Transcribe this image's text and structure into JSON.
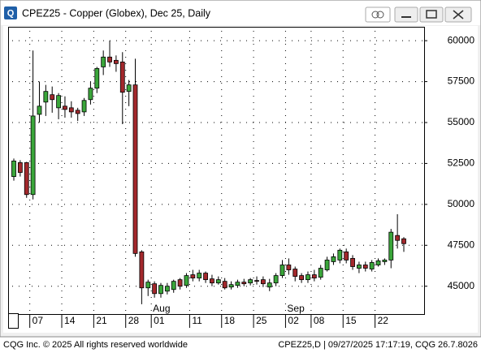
{
  "window_title": "CPEZ25 - Copper (Globex), Dec 25, Daily",
  "footer": {
    "left": "CQG Inc. © 2025 All rights reserved worldwide",
    "right": "CPEZ25,D | 09/27/2025 17:17:19, CQG 26.7.8026"
  },
  "chart_data": {
    "type": "candlestick",
    "categories": [
      null,
      null,
      null,
      "07",
      null,
      null,
      null,
      null,
      "14",
      null,
      null,
      null,
      null,
      "21",
      null,
      null,
      null,
      null,
      "28",
      null,
      null,
      null,
      "01",
      null,
      null,
      null,
      null,
      null,
      "11",
      null,
      null,
      null,
      null,
      "18",
      null,
      null,
      null,
      null,
      "25",
      null,
      null,
      null,
      null,
      "02",
      null,
      null,
      null,
      "08",
      null,
      null,
      null,
      null,
      "15",
      null,
      null,
      null,
      null,
      "22",
      null,
      null,
      null,
      null
    ],
    "months": [
      null,
      null,
      null,
      null,
      null,
      null,
      null,
      null,
      null,
      null,
      null,
      null,
      null,
      null,
      null,
      null,
      null,
      null,
      null,
      null,
      null,
      null,
      "Aug",
      null,
      null,
      null,
      null,
      null,
      null,
      null,
      null,
      null,
      null,
      null,
      null,
      null,
      null,
      null,
      null,
      null,
      null,
      null,
      null,
      "Sep",
      null,
      null,
      null,
      null,
      null,
      null,
      null,
      null,
      null,
      null,
      null,
      null,
      null,
      null,
      null,
      null,
      null,
      null
    ],
    "open": [
      51700,
      52550,
      52550,
      50600,
      55500,
      56250,
      56700,
      55900,
      56000,
      55900,
      55750,
      55650,
      56400,
      57100,
      58400,
      59000,
      58800,
      58700,
      56900,
      57300,
      47100,
      44900,
      45150,
      44550,
      44700,
      44800,
      45400,
      45050,
      45700,
      45500,
      45800,
      45450,
      45200,
      45300,
      44950,
      45050,
      45250,
      45200,
      45350,
      45400,
      44950,
      45200,
      45650,
      46300,
      46050,
      45650,
      45400,
      45700,
      45550,
      46000,
      46500,
      46600,
      47100,
      46700,
      46100,
      46300,
      46050,
      46300,
      46500,
      46600,
      48100,
      47900
    ],
    "high": [
      52800,
      52700,
      52600,
      59400,
      57500,
      57300,
      57200,
      56800,
      56600,
      56300,
      55900,
      56500,
      57500,
      58400,
      59400,
      60000,
      59100,
      59300,
      57600,
      58900,
      47200,
      45400,
      45300,
      45200,
      45200,
      45400,
      45500,
      45800,
      46000,
      46000,
      45900,
      45700,
      45600,
      45500,
      45300,
      45400,
      45450,
      45500,
      45600,
      45600,
      45450,
      45800,
      46600,
      46700,
      46200,
      45800,
      45900,
      46000,
      46300,
      46800,
      47000,
      47300,
      47300,
      46900,
      46500,
      46500,
      46600,
      46700,
      46700,
      48500,
      49400,
      48000
    ],
    "low": [
      51450,
      51700,
      50400,
      50300,
      55000,
      55400,
      55600,
      55200,
      55300,
      55300,
      55100,
      55400,
      56100,
      56800,
      57900,
      58400,
      58100,
      54900,
      56000,
      46800,
      43900,
      44400,
      44300,
      44300,
      44500,
      44600,
      44800,
      44900,
      45300,
      45300,
      45200,
      45000,
      45100,
      44800,
      44800,
      44900,
      45000,
      45050,
      45100,
      44950,
      44700,
      45000,
      45500,
      45700,
      45300,
      45200,
      45200,
      45300,
      45400,
      45900,
      46300,
      46400,
      46400,
      46000,
      45800,
      45900,
      45900,
      46200,
      46300,
      46100,
      47300,
      47100
    ],
    "close": [
      52650,
      51950,
      50600,
      55400,
      56000,
      56900,
      56400,
      56650,
      55800,
      55650,
      55550,
      56350,
      57100,
      58300,
      59000,
      58700,
      58600,
      56850,
      57300,
      47000,
      44900,
      45250,
      44550,
      45050,
      45000,
      45300,
      45000,
      45650,
      45500,
      45800,
      45400,
      45200,
      45400,
      44900,
      45100,
      45250,
      45150,
      45400,
      45300,
      45150,
      45200,
      45650,
      46300,
      46000,
      45600,
      45400,
      45700,
      45500,
      46100,
      46600,
      46800,
      47200,
      46600,
      46200,
      46300,
      46100,
      46450,
      46550,
      46600,
      48300,
      47800,
      47600
    ],
    "up_color": "#3aa63a",
    "down_color": "#a3282c",
    "ylim": [
      43300,
      60800
    ],
    "yticks": [
      45000,
      47500,
      50000,
      52500,
      55000,
      57500,
      60000
    ],
    "grid": true
  }
}
